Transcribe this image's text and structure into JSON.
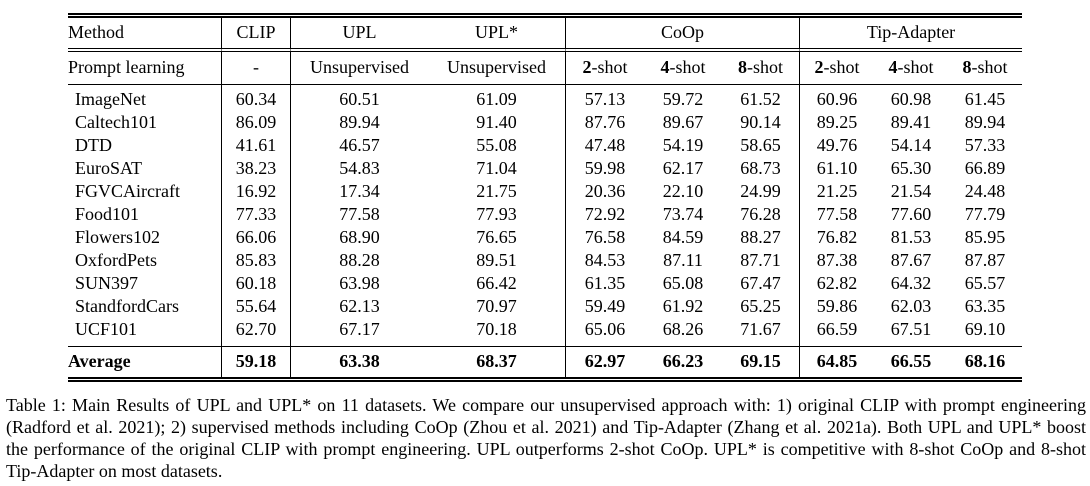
{
  "table": {
    "header": {
      "method": "Method",
      "clip": "CLIP",
      "upl": "UPL",
      "upl_star": "UPL*",
      "coop": "CoOp",
      "tip_adapter": "Tip-Adapter"
    },
    "subheader": {
      "label": "Prompt learning",
      "clip": "-",
      "upl": "Unsupervised",
      "upl_star": "Unsupervised",
      "coop_shots": [
        {
          "n": "2",
          "suffix": "-shot"
        },
        {
          "n": "4",
          "suffix": "-shot"
        },
        {
          "n": "8",
          "suffix": "-shot"
        }
      ],
      "tip_shots": [
        {
          "n": "2",
          "suffix": "-shot"
        },
        {
          "n": "4",
          "suffix": "-shot"
        },
        {
          "n": "8",
          "suffix": "-shot"
        }
      ]
    },
    "rows": [
      {
        "name": "ImageNet",
        "values": [
          "60.34",
          "60.51",
          "61.09",
          "57.13",
          "59.72",
          "61.52",
          "60.96",
          "60.98",
          "61.45"
        ]
      },
      {
        "name": "Caltech101",
        "values": [
          "86.09",
          "89.94",
          "91.40",
          "87.76",
          "89.67",
          "90.14",
          "89.25",
          "89.41",
          "89.94"
        ]
      },
      {
        "name": "DTD",
        "values": [
          "41.61",
          "46.57",
          "55.08",
          "47.48",
          "54.19",
          "58.65",
          "49.76",
          "54.14",
          "57.33"
        ]
      },
      {
        "name": "EuroSAT",
        "values": [
          "38.23",
          "54.83",
          "71.04",
          "59.98",
          "62.17",
          "68.73",
          "61.10",
          "65.30",
          "66.89"
        ]
      },
      {
        "name": "FGVCAircraft",
        "values": [
          "16.92",
          "17.34",
          "21.75",
          "20.36",
          "22.10",
          "24.99",
          "21.25",
          "21.54",
          "24.48"
        ]
      },
      {
        "name": "Food101",
        "values": [
          "77.33",
          "77.58",
          "77.93",
          "72.92",
          "73.74",
          "76.28",
          "77.58",
          "77.60",
          "77.79"
        ]
      },
      {
        "name": "Flowers102",
        "values": [
          "66.06",
          "68.90",
          "76.65",
          "76.58",
          "84.59",
          "88.27",
          "76.82",
          "81.53",
          "85.95"
        ]
      },
      {
        "name": "OxfordPets",
        "values": [
          "85.83",
          "88.28",
          "89.51",
          "84.53",
          "87.11",
          "87.71",
          "87.38",
          "87.67",
          "87.87"
        ]
      },
      {
        "name": "SUN397",
        "values": [
          "60.18",
          "63.98",
          "66.42",
          "61.35",
          "65.08",
          "67.47",
          "62.82",
          "64.32",
          "65.57"
        ]
      },
      {
        "name": "StandfordCars",
        "values": [
          "55.64",
          "62.13",
          "70.97",
          "59.49",
          "61.92",
          "65.25",
          "59.86",
          "62.03",
          "63.35"
        ]
      },
      {
        "name": "UCF101",
        "values": [
          "62.70",
          "67.17",
          "70.18",
          "65.06",
          "68.26",
          "71.67",
          "66.59",
          "67.51",
          "69.10"
        ]
      }
    ],
    "average": {
      "name": "Average",
      "values": [
        "59.18",
        "63.38",
        "68.37",
        "62.97",
        "66.23",
        "69.15",
        "64.85",
        "66.55",
        "68.16"
      ]
    }
  },
  "caption": {
    "text": "Table 1: Main Results of UPL and UPL* on 11 datasets. We compare our unsupervised approach with: 1) original CLIP with prompt engineering (Radford et al. 2021); 2) supervised methods including CoOp (Zhou et al. 2021) and Tip-Adapter (Zhang et al. 2021a). Both UPL and UPL* boost the performance of the original CLIP with prompt engineering. UPL outperforms 2-shot CoOp. UPL* is competitive with 8-shot CoOp and 8-shot Tip-Adapter on most datasets."
  }
}
